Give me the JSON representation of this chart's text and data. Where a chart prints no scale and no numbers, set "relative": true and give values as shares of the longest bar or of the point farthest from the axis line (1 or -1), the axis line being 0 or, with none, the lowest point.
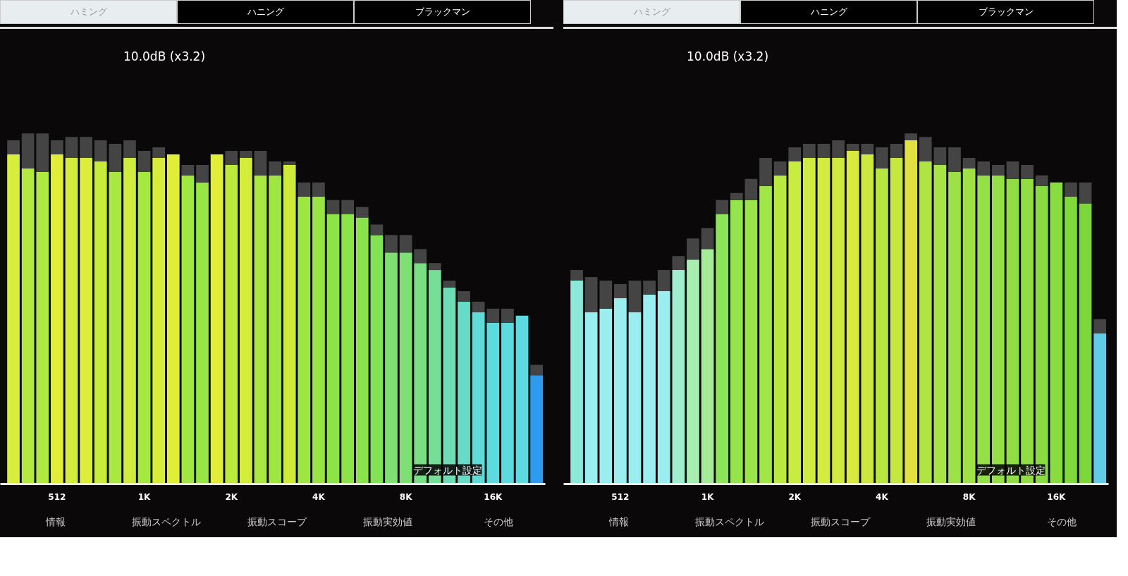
{
  "chart_data": [
    {
      "type": "bar",
      "stacked": true,
      "relative": true,
      "categories": [
        null,
        null,
        null,
        "512",
        null,
        null,
        null,
        null,
        null,
        "1K",
        null,
        null,
        null,
        null,
        null,
        "2K",
        null,
        null,
        null,
        null,
        null,
        "4K",
        null,
        null,
        null,
        null,
        null,
        "8K",
        null,
        null,
        null,
        null,
        null,
        "16K",
        null,
        null,
        null
      ],
      "series": [
        {
          "colors": [
            "#d8ee3c",
            "#b4ea3e",
            "#b0ea40",
            "#e0ee3a",
            "#d4ec3c",
            "#dcee3a",
            "#c8ec3c",
            "#a8e840",
            "#d0ec3c",
            "#a4e840",
            "#d8ec3a",
            "#e0ee38",
            "#a0e840",
            "#98e644",
            "#e0ee38",
            "#bcea3c",
            "#d4ec3a",
            "#a8e840",
            "#a0e642",
            "#d0ea3a",
            "#9ee642",
            "#98e444",
            "#8ce446",
            "#8ce446",
            "#88e44a",
            "#80e254",
            "#7ee070",
            "#7ee074",
            "#7ade84",
            "#76de96",
            "#6edcb4",
            "#66dcc8",
            "#60dcd8",
            "#5cdade",
            "#5cdae0",
            "#5cdae0",
            "#2c9cf0"
          ],
          "values": [
            0.94,
            0.9,
            0.89,
            0.94,
            0.93,
            0.93,
            0.92,
            0.89,
            0.93,
            0.89,
            0.93,
            0.94,
            0.88,
            0.86,
            0.94,
            0.91,
            0.93,
            0.88,
            0.88,
            0.91,
            0.82,
            0.82,
            0.77,
            0.77,
            0.76,
            0.71,
            0.66,
            0.66,
            0.63,
            0.61,
            0.56,
            0.52,
            0.49,
            0.46,
            0.46,
            0.48,
            0.31
          ]
        },
        {
          "color": "#444444",
          "values": [
            0.04,
            0.1,
            0.11,
            0.04,
            0.06,
            0.06,
            0.06,
            0.08,
            0.05,
            0.06,
            0.03,
            0,
            0.03,
            0.05,
            0,
            0.04,
            0.02,
            0.07,
            0.04,
            0.01,
            0.04,
            0.04,
            0.04,
            0.04,
            0.03,
            0.03,
            0.05,
            0.05,
            0.04,
            0.02,
            0.02,
            0.03,
            0.03,
            0.04,
            0.04,
            0,
            0.03
          ]
        }
      ],
      "annotations": [
        "ハミング",
        "ハニング",
        "ブラックマン",
        "10.0dB (x3.2)",
        "デフォルト設定",
        "情報",
        "振動スペクトル",
        "振動スコープ",
        "振動実効値",
        "その他"
      ]
    },
    {
      "type": "bar",
      "stacked": true,
      "relative": true,
      "categories": [
        null,
        null,
        null,
        "512",
        null,
        null,
        null,
        null,
        null,
        "1K",
        null,
        null,
        null,
        null,
        null,
        "2K",
        null,
        null,
        null,
        null,
        null,
        "4K",
        null,
        null,
        null,
        null,
        null,
        "8K",
        null,
        null,
        null,
        null,
        null,
        "16K",
        null,
        null,
        null
      ],
      "series": [
        {
          "colors": [
            "#8ce8d8",
            "#9aeef0",
            "#9aeef0",
            "#9aeef0",
            "#9aeef0",
            "#9aeef0",
            "#9aeef0",
            "#a0eed0",
            "#a8eeb0",
            "#a4ec98",
            "#8ce458",
            "#94e44c",
            "#98e44a",
            "#a0e644",
            "#b8ea40",
            "#c8ec40",
            "#d0ec40",
            "#d4ec40",
            "#d0ea40",
            "#d8ea40",
            "#cce840",
            "#b8e640",
            "#c4e840",
            "#e0e040",
            "#b0e442",
            "#a8e444",
            "#9ce246",
            "#a0e246",
            "#94e046",
            "#94e046",
            "#8ede44",
            "#90de44",
            "#88dc40",
            "#88dc40",
            "#80da3c",
            "#7cd83a",
            "#60cce8"
          ],
          "values": [
            0.58,
            0.49,
            0.5,
            0.53,
            0.49,
            0.54,
            0.55,
            0.61,
            0.64,
            0.67,
            0.77,
            0.81,
            0.81,
            0.85,
            0.88,
            0.92,
            0.93,
            0.93,
            0.93,
            0.95,
            0.94,
            0.9,
            0.93,
            0.98,
            0.92,
            0.91,
            0.89,
            0.9,
            0.88,
            0.88,
            0.87,
            0.87,
            0.85,
            0.86,
            0.82,
            0.8,
            0.43
          ]
        },
        {
          "color": "#444444",
          "values": [
            0.03,
            0.1,
            0.08,
            0.04,
            0.09,
            0.04,
            0.06,
            0.04,
            0.06,
            0.06,
            0.04,
            0.02,
            0.06,
            0.08,
            0.04,
            0.04,
            0.04,
            0.04,
            0.05,
            0.02,
            0.03,
            0.06,
            0.04,
            0.02,
            0.07,
            0.05,
            0.07,
            0.03,
            0.04,
            0.03,
            0.05,
            0.04,
            0.03,
            0,
            0.04,
            0.06,
            0.04
          ]
        }
      ],
      "annotations": [
        "ハミング",
        "ハニング",
        "ブラックマン",
        "10.0dB (x3.2)",
        "デフォルト設定",
        "情報",
        "振動スペクトル",
        "振動スコープ",
        "振動実効値",
        "その他"
      ]
    }
  ]
}
